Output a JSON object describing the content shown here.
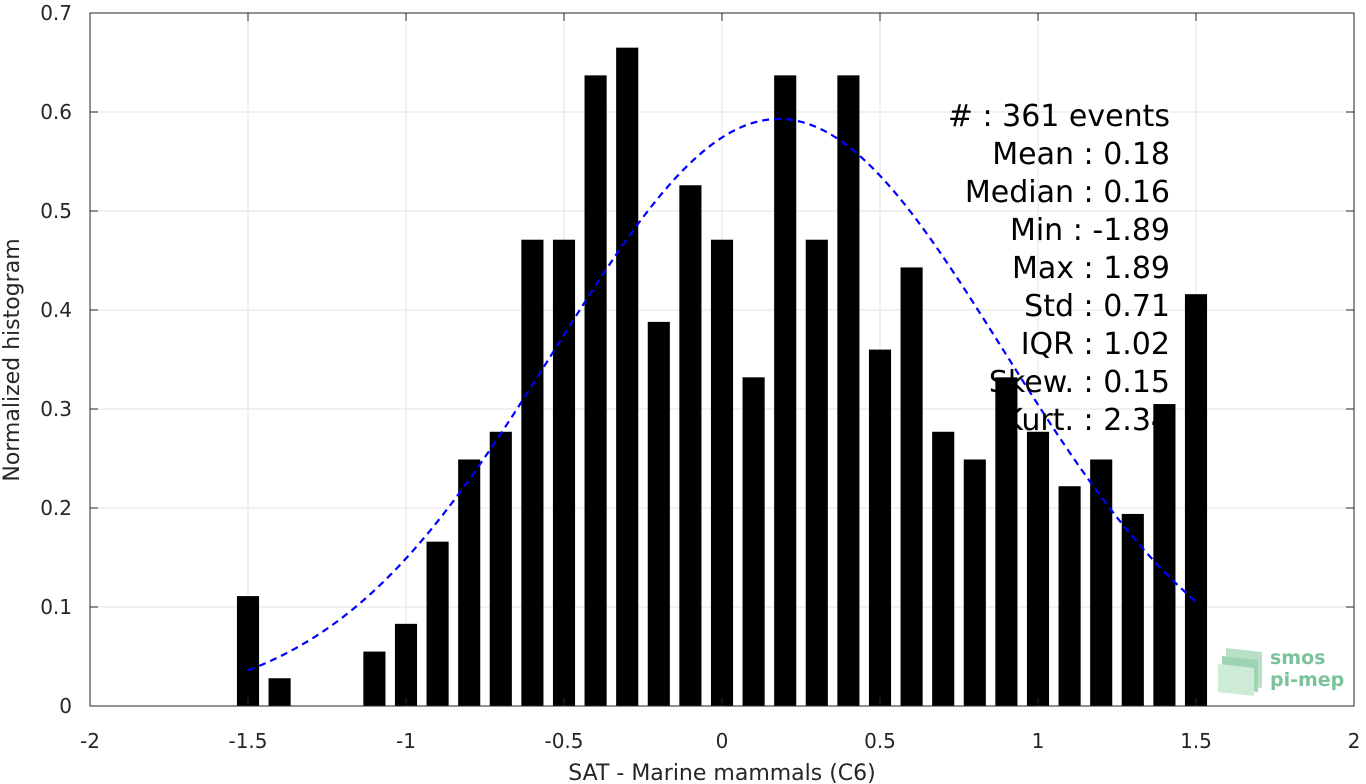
{
  "chart_data": {
    "type": "bar",
    "xlabel": "SAT - Marine mammals (C6)",
    "ylabel": "Normalized histogram",
    "xlim": [
      -2,
      2
    ],
    "ylim": [
      0,
      0.7
    ],
    "xticks": [
      -2,
      -1.5,
      -1,
      -0.5,
      0,
      0.5,
      1,
      1.5,
      2
    ],
    "xtick_labels": [
      "-2",
      "-1.5",
      "-1",
      "-0.5",
      "0",
      "0.5",
      "1",
      "1.5",
      "2"
    ],
    "yticks": [
      0,
      0.1,
      0.2,
      0.3,
      0.4,
      0.5,
      0.6,
      0.7
    ],
    "ytick_labels": [
      "0",
      "0.1",
      "0.2",
      "0.3",
      "0.4",
      "0.5",
      "0.6",
      "0.7"
    ],
    "grid": true,
    "bar_color": "#000000",
    "bar_width": 0.07,
    "bars": {
      "x": [
        -1.5,
        -1.4,
        -1.1,
        -1.0,
        -0.9,
        -0.8,
        -0.7,
        -0.6,
        -0.5,
        -0.4,
        -0.3,
        -0.2,
        -0.1,
        0.0,
        0.1,
        0.2,
        0.3,
        0.4,
        0.5,
        0.6,
        0.7,
        0.8,
        0.9,
        1.0,
        1.1,
        1.2,
        1.3,
        1.4,
        1.5
      ],
      "values": [
        0.111,
        0.028,
        0.055,
        0.083,
        0.166,
        0.249,
        0.277,
        0.471,
        0.471,
        0.637,
        0.665,
        0.388,
        0.526,
        0.471,
        0.332,
        0.637,
        0.471,
        0.637,
        0.36,
        0.443,
        0.277,
        0.249,
        0.332,
        0.277,
        0.222,
        0.249,
        0.194,
        0.305,
        0.416
      ]
    },
    "fit_curve": {
      "style": "dashed",
      "color": "#0000ff",
      "mean": 0.18,
      "std": 0.71,
      "peak": 0.593,
      "x_range": [
        -1.5,
        1.5
      ]
    },
    "annotations": [
      "#  : 361 events",
      "Mean : 0.18",
      "Median : 0.16",
      "Min : -1.89",
      "Max : 1.89",
      "Std : 0.71",
      "IQR : 1.02",
      "Skew. : 0.15",
      "Kurt. : 2.34"
    ]
  },
  "logo": {
    "line1": "smos",
    "line2": "pi-mep",
    "color": "#7ac29a"
  }
}
